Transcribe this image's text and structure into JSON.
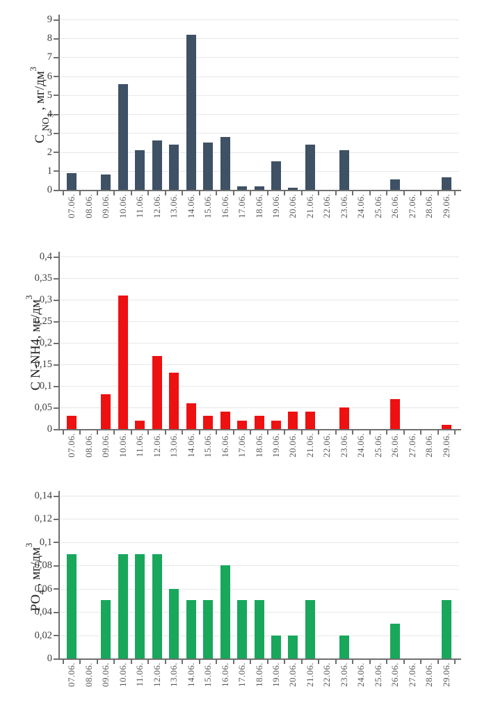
{
  "page": {
    "background": "#ffffff"
  },
  "style": {
    "grid_color": "#e7e7e7",
    "axis_color": "#6f6f6f",
    "y_tick_label_color": "#3d3d3d",
    "x_tick_label_color": "#585858",
    "axis_title_color": "#1d1d1d"
  },
  "chart_data": [
    {
      "id": "no3",
      "type": "bar",
      "bar_color": "#3e5165",
      "ylabel_plain": "C NO3, мг/дм3",
      "ylabel_parts": [
        {
          "text": "C ",
          "kind": "n"
        },
        {
          "text": "NO",
          "kind": "sub"
        },
        {
          "text": "3",
          "kind": "subsub"
        },
        {
          "text": " , мг/дм",
          "kind": "n"
        },
        {
          "text": "3",
          "kind": "sup"
        }
      ],
      "ylim": [
        0,
        9
      ],
      "yticks": [
        {
          "v": 0,
          "label": "0"
        },
        {
          "v": 1,
          "label": "1"
        },
        {
          "v": 2,
          "label": "2"
        },
        {
          "v": 3,
          "label": "3"
        },
        {
          "v": 4,
          "label": "4"
        },
        {
          "v": 5,
          "label": "5"
        },
        {
          "v": 6,
          "label": "6"
        },
        {
          "v": 7,
          "label": "7"
        },
        {
          "v": 8,
          "label": "8"
        },
        {
          "v": 9,
          "label": "9"
        }
      ],
      "categories": [
        "07.06.",
        "08.06.",
        "09.06.",
        "10.06.",
        "11.06.",
        "12.06.",
        "13.06.",
        "14.06.",
        "15.06.",
        "16.06.",
        "17.06.",
        "18.06.",
        "19.06.",
        "20.06.",
        "21.06.",
        "22.06.",
        "23.06.",
        "24.06.",
        "25.06.",
        "26.06.",
        "27.06.",
        "28.06.",
        "29.06."
      ],
      "values": [
        0.9,
        0,
        0.8,
        5.6,
        2.1,
        2.6,
        2.4,
        8.2,
        2.5,
        2.8,
        0.2,
        0.2,
        1.5,
        0.1,
        2.4,
        0,
        2.1,
        0,
        0,
        0.55,
        0,
        0,
        0.65
      ]
    },
    {
      "id": "nh4",
      "type": "bar",
      "bar_color": "#ee1111",
      "ylabel_plain": "C N-NH4, мг/дм3",
      "ylabel_parts": [
        {
          "text": "C N-NH4, мг/дм",
          "kind": "n"
        },
        {
          "text": "3",
          "kind": "sup"
        }
      ],
      "ylim": [
        0,
        0.4
      ],
      "yticks": [
        {
          "v": 0,
          "label": "0"
        },
        {
          "v": 0.05,
          "label": "0,05"
        },
        {
          "v": 0.1,
          "label": "0,1"
        },
        {
          "v": 0.15,
          "label": "0,15"
        },
        {
          "v": 0.2,
          "label": "0,2"
        },
        {
          "v": 0.25,
          "label": "0,25"
        },
        {
          "v": 0.3,
          "label": "0,3"
        },
        {
          "v": 0.35,
          "label": "0,35"
        },
        {
          "v": 0.4,
          "label": "0,4"
        }
      ],
      "categories": [
        "07.06.",
        "08.06.",
        "09.06.",
        "10.06.",
        "11.06.",
        "12.06.",
        "13.06.",
        "14.06.",
        "15.06.",
        "16.06.",
        "17.06.",
        "18.06.",
        "19.06.",
        "20.06.",
        "21.06.",
        "22.06.",
        "23.06.",
        "24.06.",
        "25.06.",
        "26.06.",
        "27.06.",
        "28.06.",
        "29.06."
      ],
      "values": [
        0.03,
        0,
        0.08,
        0.31,
        0.02,
        0.17,
        0.13,
        0.06,
        0.03,
        0.04,
        0.02,
        0.03,
        0.02,
        0.04,
        0.04,
        0,
        0.05,
        0,
        0,
        0.07,
        0,
        0,
        0.01
      ]
    },
    {
      "id": "po4",
      "type": "bar",
      "bar_color": "#19a75c",
      "ylabel_plain": "PO4, мг/дм3",
      "ylabel_parts": [
        {
          "text": "PO",
          "kind": "n"
        },
        {
          "text": "4",
          "kind": "sub"
        },
        {
          "text": " , мг/дм",
          "kind": "n"
        },
        {
          "text": "3",
          "kind": "sup"
        }
      ],
      "ylim": [
        0,
        0.14
      ],
      "yticks": [
        {
          "v": 0,
          "label": "0"
        },
        {
          "v": 0.02,
          "label": "0,02"
        },
        {
          "v": 0.04,
          "label": "0,04"
        },
        {
          "v": 0.06,
          "label": "0,06"
        },
        {
          "v": 0.08,
          "label": "0,08"
        },
        {
          "v": 0.1,
          "label": "0,1"
        },
        {
          "v": 0.12,
          "label": "0,12"
        },
        {
          "v": 0.14,
          "label": "0,14"
        }
      ],
      "categories": [
        "07.06.",
        "08.06.",
        "09.06.",
        "10.06.",
        "11.06.",
        "12.06.",
        "13.06.",
        "14.06.",
        "15.06.",
        "16.06.",
        "17.06.",
        "18.06.",
        "19.06.",
        "20.06.",
        "21.06.",
        "22.06.",
        "23.06.",
        "24.06.",
        "25.06.",
        "26.06.",
        "27.06.",
        "28.06.",
        "29.06."
      ],
      "values": [
        0.09,
        0,
        0.05,
        0.09,
        0.09,
        0.09,
        0.06,
        0.05,
        0.05,
        0.08,
        0.05,
        0.05,
        0.02,
        0.02,
        0.05,
        0,
        0.02,
        0,
        0,
        0.03,
        0,
        0,
        0.05
      ]
    }
  ]
}
